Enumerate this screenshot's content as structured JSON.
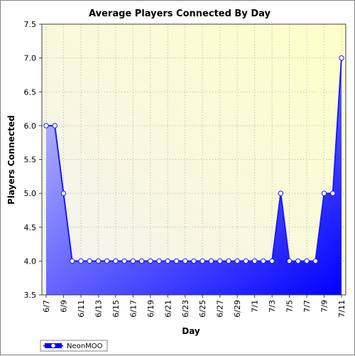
{
  "chart_data": {
    "type": "area",
    "title": "Average Players Connected By Day",
    "xlabel": "Day",
    "ylabel": "Players Connected",
    "ylim": [
      3.5,
      7.5
    ],
    "yticks": [
      "3.5",
      "4.0",
      "4.5",
      "5.0",
      "5.5",
      "6.0",
      "6.5",
      "7.0",
      "7.5"
    ],
    "x": [
      "6/7",
      "6/8",
      "6/9",
      "6/10",
      "6/11",
      "6/12",
      "6/13",
      "6/14",
      "6/15",
      "6/16",
      "6/17",
      "6/18",
      "6/19",
      "6/20",
      "6/21",
      "6/22",
      "6/23",
      "6/24",
      "6/25",
      "6/26",
      "6/27",
      "6/28",
      "6/29",
      "6/30",
      "7/1",
      "7/2",
      "7/3",
      "7/4",
      "7/5",
      "7/6",
      "7/7",
      "7/8",
      "7/9",
      "7/10",
      "7/11"
    ],
    "xtick_labels": [
      "6/7",
      "6/9",
      "6/11",
      "6/13",
      "6/15",
      "6/17",
      "6/19",
      "6/21",
      "6/23",
      "6/25",
      "6/27",
      "6/29",
      "7/1",
      "7/3",
      "7/5",
      "7/7",
      "7/9",
      "7/11"
    ],
    "series": [
      {
        "name": "NeonMOO",
        "values": [
          6,
          6,
          5,
          4,
          4,
          4,
          4,
          4,
          4,
          4,
          4,
          4,
          4,
          4,
          4,
          4,
          4,
          4,
          4,
          4,
          4,
          4,
          4,
          4,
          4,
          4,
          4,
          5,
          4,
          4,
          4,
          4,
          5,
          5,
          7
        ]
      }
    ],
    "grid": true,
    "legend": "bottom-left",
    "colors": {
      "line": "#1a1aff",
      "fill_start": "#c8c8ff",
      "fill_end": "#0000ff",
      "plot_bg_start": "#f2f2f2",
      "plot_bg_end": "#ffffc8",
      "grid": "#b4b4b4"
    }
  }
}
